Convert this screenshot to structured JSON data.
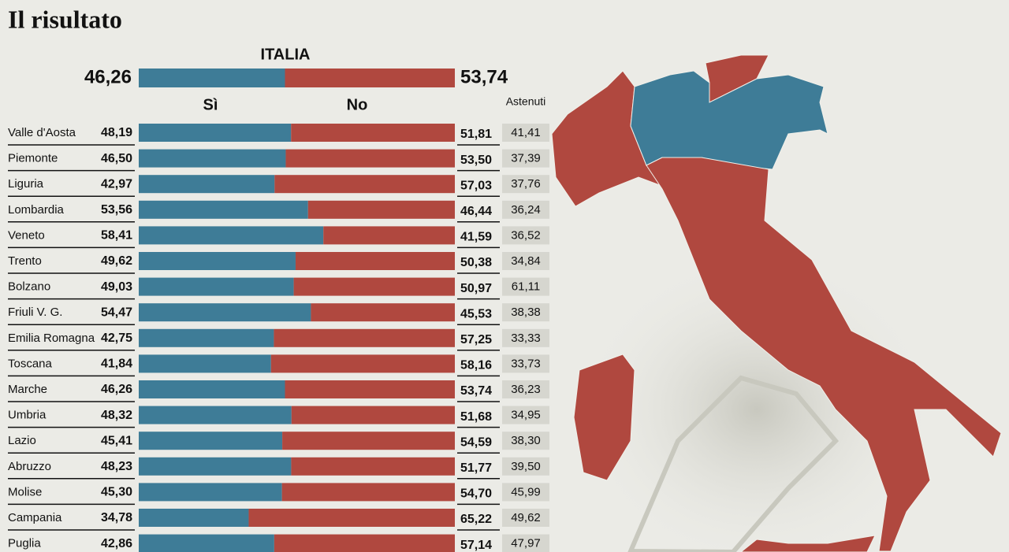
{
  "chart_data": {
    "type": "bar",
    "title": "Il risultato",
    "xlim": [
      0,
      100
    ],
    "total": {
      "name": "ITALIA",
      "values": [
        46.26,
        53.74
      ],
      "value_labels": [
        "46,26",
        "53,74"
      ]
    },
    "categories": [
      "Valle d'Aosta",
      "Piemonte",
      "Liguria",
      "Lombardia",
      "Veneto",
      "Trento",
      "Bolzano",
      "Friuli V. G.",
      "Emilia Romagna",
      "Toscana",
      "Marche",
      "Umbria",
      "Lazio",
      "Abruzzo",
      "Molise",
      "Campania",
      "Puglia"
    ],
    "series": [
      {
        "name": "Sì",
        "color": "#3e7c97",
        "values": [
          48.19,
          46.5,
          42.97,
          53.56,
          58.41,
          49.62,
          49.03,
          54.47,
          42.75,
          41.84,
          46.26,
          48.32,
          45.41,
          48.23,
          45.3,
          34.78,
          42.86
        ],
        "value_labels": [
          "48,19",
          "46,50",
          "42,97",
          "53,56",
          "58,41",
          "49,62",
          "49,03",
          "54,47",
          "42,75",
          "41,84",
          "46,26",
          "48,32",
          "45,41",
          "48,23",
          "45,30",
          "34,78",
          "42,86"
        ]
      },
      {
        "name": "No",
        "color": "#b0483f",
        "values": [
          51.81,
          53.5,
          57.03,
          46.44,
          41.59,
          50.38,
          50.97,
          45.53,
          57.25,
          58.16,
          53.74,
          51.68,
          54.59,
          51.77,
          54.7,
          65.22,
          57.14
        ],
        "value_labels": [
          "51,81",
          "53,50",
          "57,03",
          "46,44",
          "41,59",
          "50,38",
          "50,97",
          "45,53",
          "57,25",
          "58,16",
          "53,74",
          "51,68",
          "54,59",
          "51,77",
          "54,70",
          "65,22",
          "57,14"
        ]
      }
    ],
    "astenuti": {
      "name": "Astenuti",
      "values": [
        41.41,
        37.39,
        37.76,
        36.24,
        36.52,
        34.84,
        61.11,
        38.38,
        33.33,
        33.73,
        36.23,
        34.95,
        38.3,
        39.5,
        45.99,
        49.62,
        47.97
      ],
      "value_labels": [
        "41,41",
        "37,39",
        "37,76",
        "36,24",
        "36,52",
        "34,84",
        "61,11",
        "38,38",
        "33,33",
        "33,73",
        "36,23",
        "34,95",
        "38,30",
        "39,50",
        "45,99",
        "49,62",
        "47,97"
      ]
    }
  }
}
